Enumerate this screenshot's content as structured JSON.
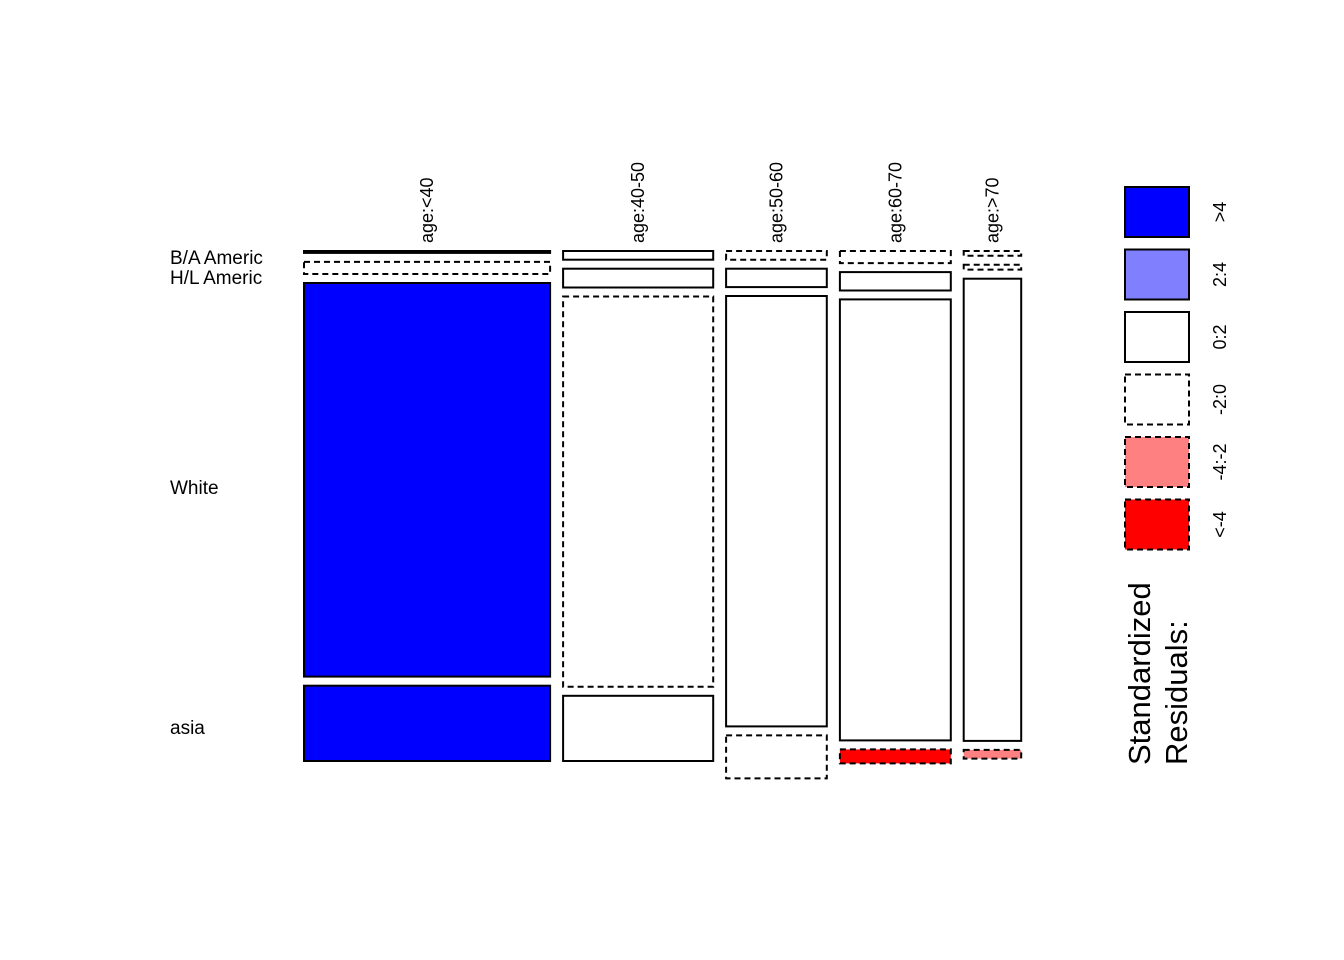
{
  "chart_data": {
    "type": "mosaic",
    "columns": [
      "age:<40",
      "age:40-50",
      "age:50-60",
      "age:60-70",
      "age:>70"
    ],
    "column_share": [
      0.364,
      0.222,
      0.149,
      0.164,
      0.085
    ],
    "rows": [
      "B/A Americ",
      "H/L Americ",
      "White",
      "asia"
    ],
    "cell_share": [
      [
        0.004,
        0.025,
        0.815,
        0.156
      ],
      [
        0.018,
        0.039,
        0.808,
        0.135
      ],
      [
        0.018,
        0.038,
        0.891,
        0.089
      ],
      [
        0.025,
        0.038,
        0.913,
        0.029
      ],
      [
        0.01,
        0.01,
        0.957,
        0.018
      ]
    ],
    "residual_class": [
      [
        "0:2",
        "-2:0",
        ">4",
        ">4"
      ],
      [
        "0:2",
        "0:2",
        "-2:0",
        "0:2"
      ],
      [
        "-2:0",
        "0:2",
        "0:2",
        "-2:0"
      ],
      [
        "-2:0",
        "0:2",
        "0:2",
        "<-4"
      ],
      [
        "-2:0",
        "-2:0",
        "0:2",
        "-4:-2"
      ]
    ],
    "legend": {
      "title_line1": "Standardized",
      "title_line2": "Residuals:",
      "bins": [
        {
          "label": ">4",
          "color": "#0000FF",
          "dashed": false
        },
        {
          "label": "2:4",
          "color": "#8080FF",
          "dashed": false
        },
        {
          "label": "0:2",
          "color": "#FFFFFF",
          "dashed": false
        },
        {
          "label": "-2:0",
          "color": "#FFFFFF",
          "dashed": true
        },
        {
          "label": "-4:-2",
          "color": "#FF8080",
          "dashed": true
        },
        {
          "label": "<-4",
          "color": "#FF0000",
          "dashed": true
        }
      ]
    }
  }
}
